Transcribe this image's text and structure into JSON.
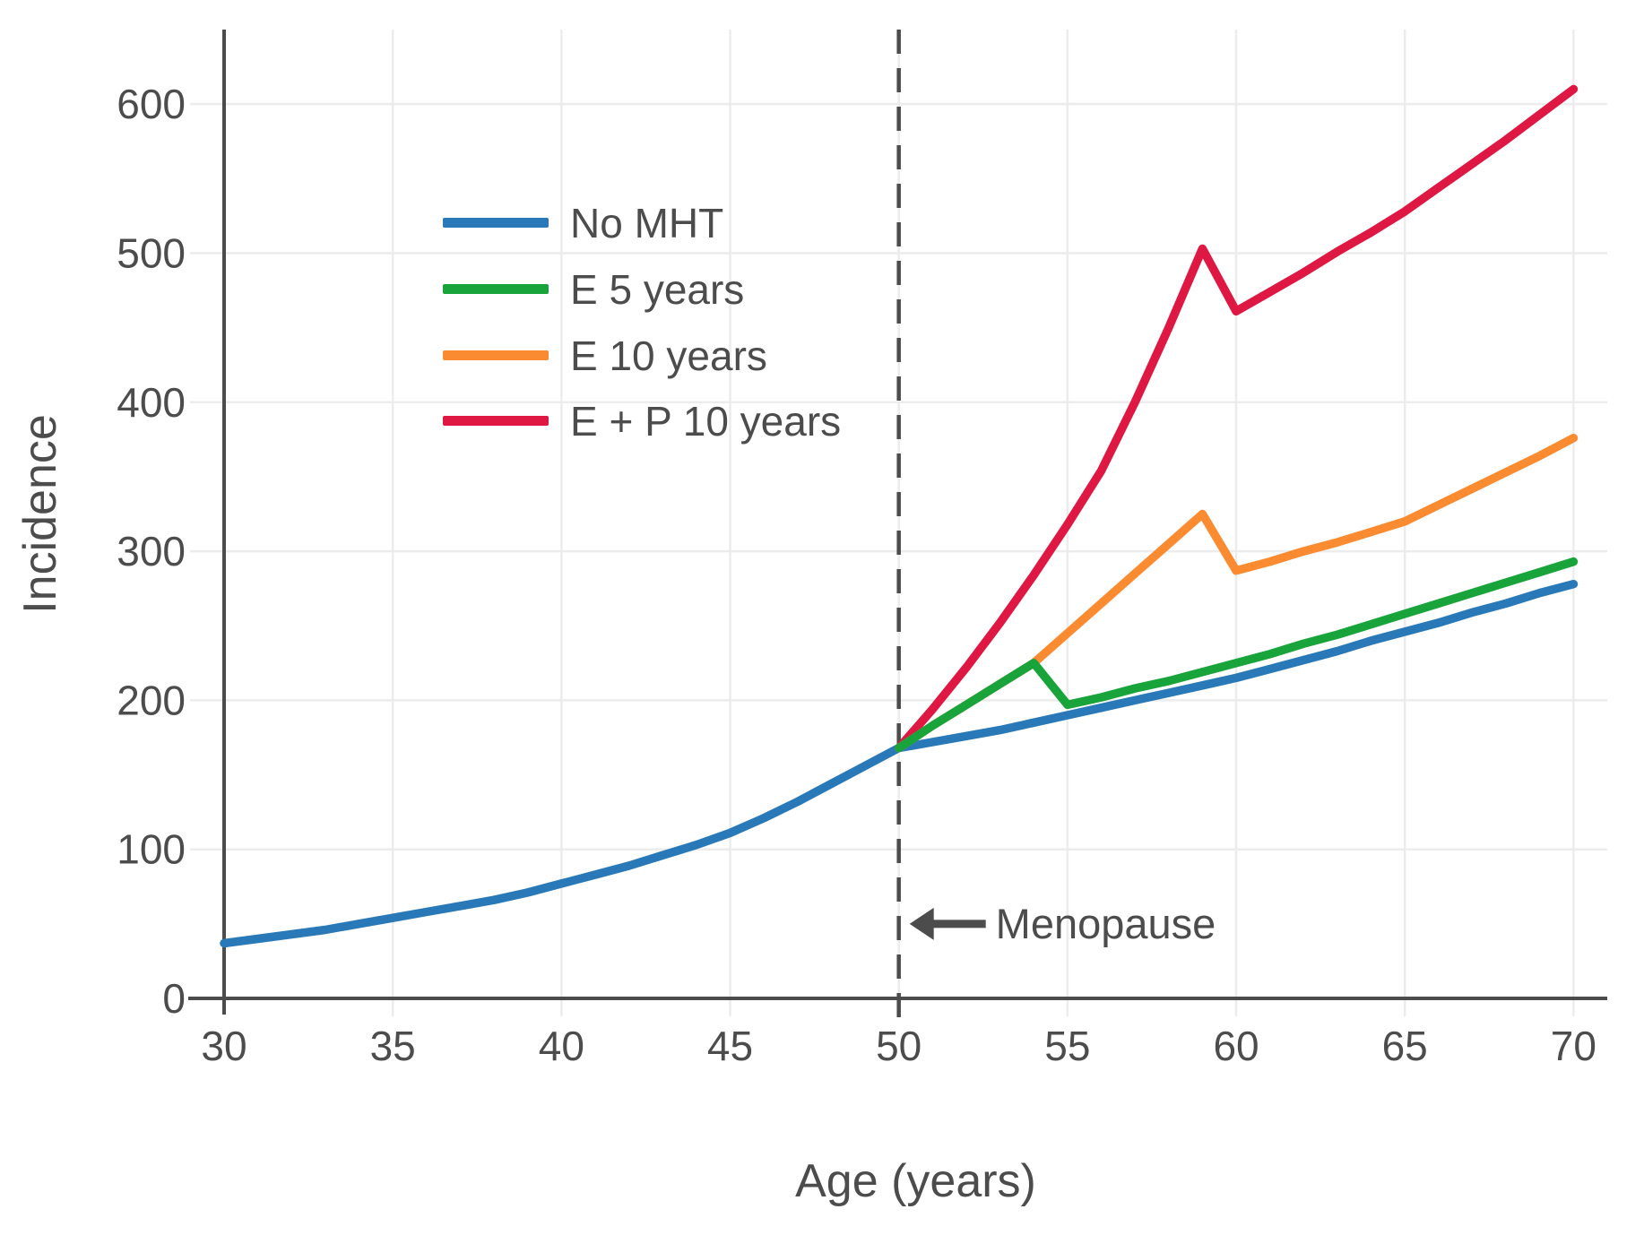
{
  "figure": {
    "background": "#ffffff",
    "aria_label": "Line chart of breast cancer incidence by age for different menopausal hormone therapy regimens"
  },
  "chart_data": {
    "type": "line",
    "title": "",
    "xlabel": "Age (years)",
    "ylabel": "Incidence",
    "xlim": [
      30,
      71
    ],
    "ylim": [
      0,
      650
    ],
    "xticks": [
      30,
      35,
      40,
      45,
      50,
      55,
      60,
      65,
      70
    ],
    "yticks": [
      0,
      100,
      200,
      300,
      400,
      500,
      600
    ],
    "grid": true,
    "grid_color": "#ececec",
    "axis_color": "#4c4c4c",
    "tick_label_color": "#4c4c4c",
    "legend_position": "upper-left-inside",
    "vline": {
      "x": 50,
      "style": "dashed",
      "color": "#4c4c4c"
    },
    "annotation": {
      "text": "Menopause",
      "arrow": "left",
      "x": 50,
      "y": 50,
      "color": "#4c4c4c"
    },
    "series": [
      {
        "name": "No MHT",
        "slug": "no-mht",
        "color": "#2979b9",
        "points": [
          [
            30,
            37
          ],
          [
            31,
            40
          ],
          [
            32,
            43
          ],
          [
            33,
            46
          ],
          [
            34,
            50
          ],
          [
            35,
            54
          ],
          [
            36,
            58
          ],
          [
            37,
            62
          ],
          [
            38,
            66
          ],
          [
            39,
            71
          ],
          [
            40,
            77
          ],
          [
            41,
            83
          ],
          [
            42,
            89
          ],
          [
            43,
            96
          ],
          [
            44,
            103
          ],
          [
            45,
            111
          ],
          [
            46,
            121
          ],
          [
            47,
            132
          ],
          [
            48,
            144
          ],
          [
            49,
            156
          ],
          [
            50,
            168
          ],
          [
            51,
            172
          ],
          [
            52,
            176
          ],
          [
            53,
            180
          ],
          [
            54,
            185
          ],
          [
            55,
            190
          ],
          [
            56,
            195
          ],
          [
            57,
            200
          ],
          [
            58,
            205
          ],
          [
            59,
            210
          ],
          [
            60,
            215
          ],
          [
            61,
            221
          ],
          [
            62,
            227
          ],
          [
            63,
            233
          ],
          [
            64,
            240
          ],
          [
            65,
            246
          ],
          [
            66,
            252
          ],
          [
            67,
            259
          ],
          [
            68,
            265
          ],
          [
            69,
            272
          ],
          [
            70,
            278
          ]
        ]
      },
      {
        "name": "E 5 years",
        "slug": "e-5-years",
        "color": "#19a43b",
        "points": [
          [
            50,
            168
          ],
          [
            51,
            183
          ],
          [
            52,
            197
          ],
          [
            53,
            211
          ],
          [
            54,
            225
          ],
          [
            55,
            197
          ],
          [
            56,
            202
          ],
          [
            57,
            208
          ],
          [
            58,
            213
          ],
          [
            59,
            219
          ],
          [
            60,
            225
          ],
          [
            61,
            231
          ],
          [
            62,
            238
          ],
          [
            63,
            244
          ],
          [
            64,
            251
          ],
          [
            65,
            258
          ],
          [
            66,
            265
          ],
          [
            67,
            272
          ],
          [
            68,
            279
          ],
          [
            69,
            286
          ],
          [
            70,
            293
          ]
        ]
      },
      {
        "name": "E 10 years",
        "slug": "e-10-years",
        "color": "#fb8b31",
        "points": [
          [
            50,
            168
          ],
          [
            51,
            183
          ],
          [
            52,
            197
          ],
          [
            53,
            211
          ],
          [
            54,
            225
          ],
          [
            55,
            245
          ],
          [
            56,
            265
          ],
          [
            57,
            285
          ],
          [
            58,
            305
          ],
          [
            59,
            325
          ],
          [
            60,
            287
          ],
          [
            61,
            293
          ],
          [
            62,
            300
          ],
          [
            63,
            306
          ],
          [
            64,
            313
          ],
          [
            65,
            320
          ],
          [
            66,
            331
          ],
          [
            67,
            342
          ],
          [
            68,
            353
          ],
          [
            69,
            364
          ],
          [
            70,
            376
          ]
        ]
      },
      {
        "name": "E + P 10 years",
        "slug": "e-p-10-years",
        "color": "#de1843",
        "points": [
          [
            50,
            168
          ],
          [
            51,
            194
          ],
          [
            52,
            222
          ],
          [
            53,
            252
          ],
          [
            54,
            284
          ],
          [
            55,
            318
          ],
          [
            56,
            354
          ],
          [
            57,
            400
          ],
          [
            58,
            450
          ],
          [
            59,
            503
          ],
          [
            60,
            461
          ],
          [
            61,
            474
          ],
          [
            62,
            487
          ],
          [
            63,
            501
          ],
          [
            64,
            514
          ],
          [
            65,
            528
          ],
          [
            66,
            544
          ],
          [
            67,
            560
          ],
          [
            68,
            576
          ],
          [
            69,
            593
          ],
          [
            70,
            610
          ]
        ]
      }
    ],
    "legend_order": [
      "No MHT",
      "E 5 years",
      "E 10 years",
      "E + P 10 years"
    ],
    "draw_order": [
      "no-mht",
      "e-p-10-years",
      "e-10-years",
      "e-5-years"
    ]
  }
}
